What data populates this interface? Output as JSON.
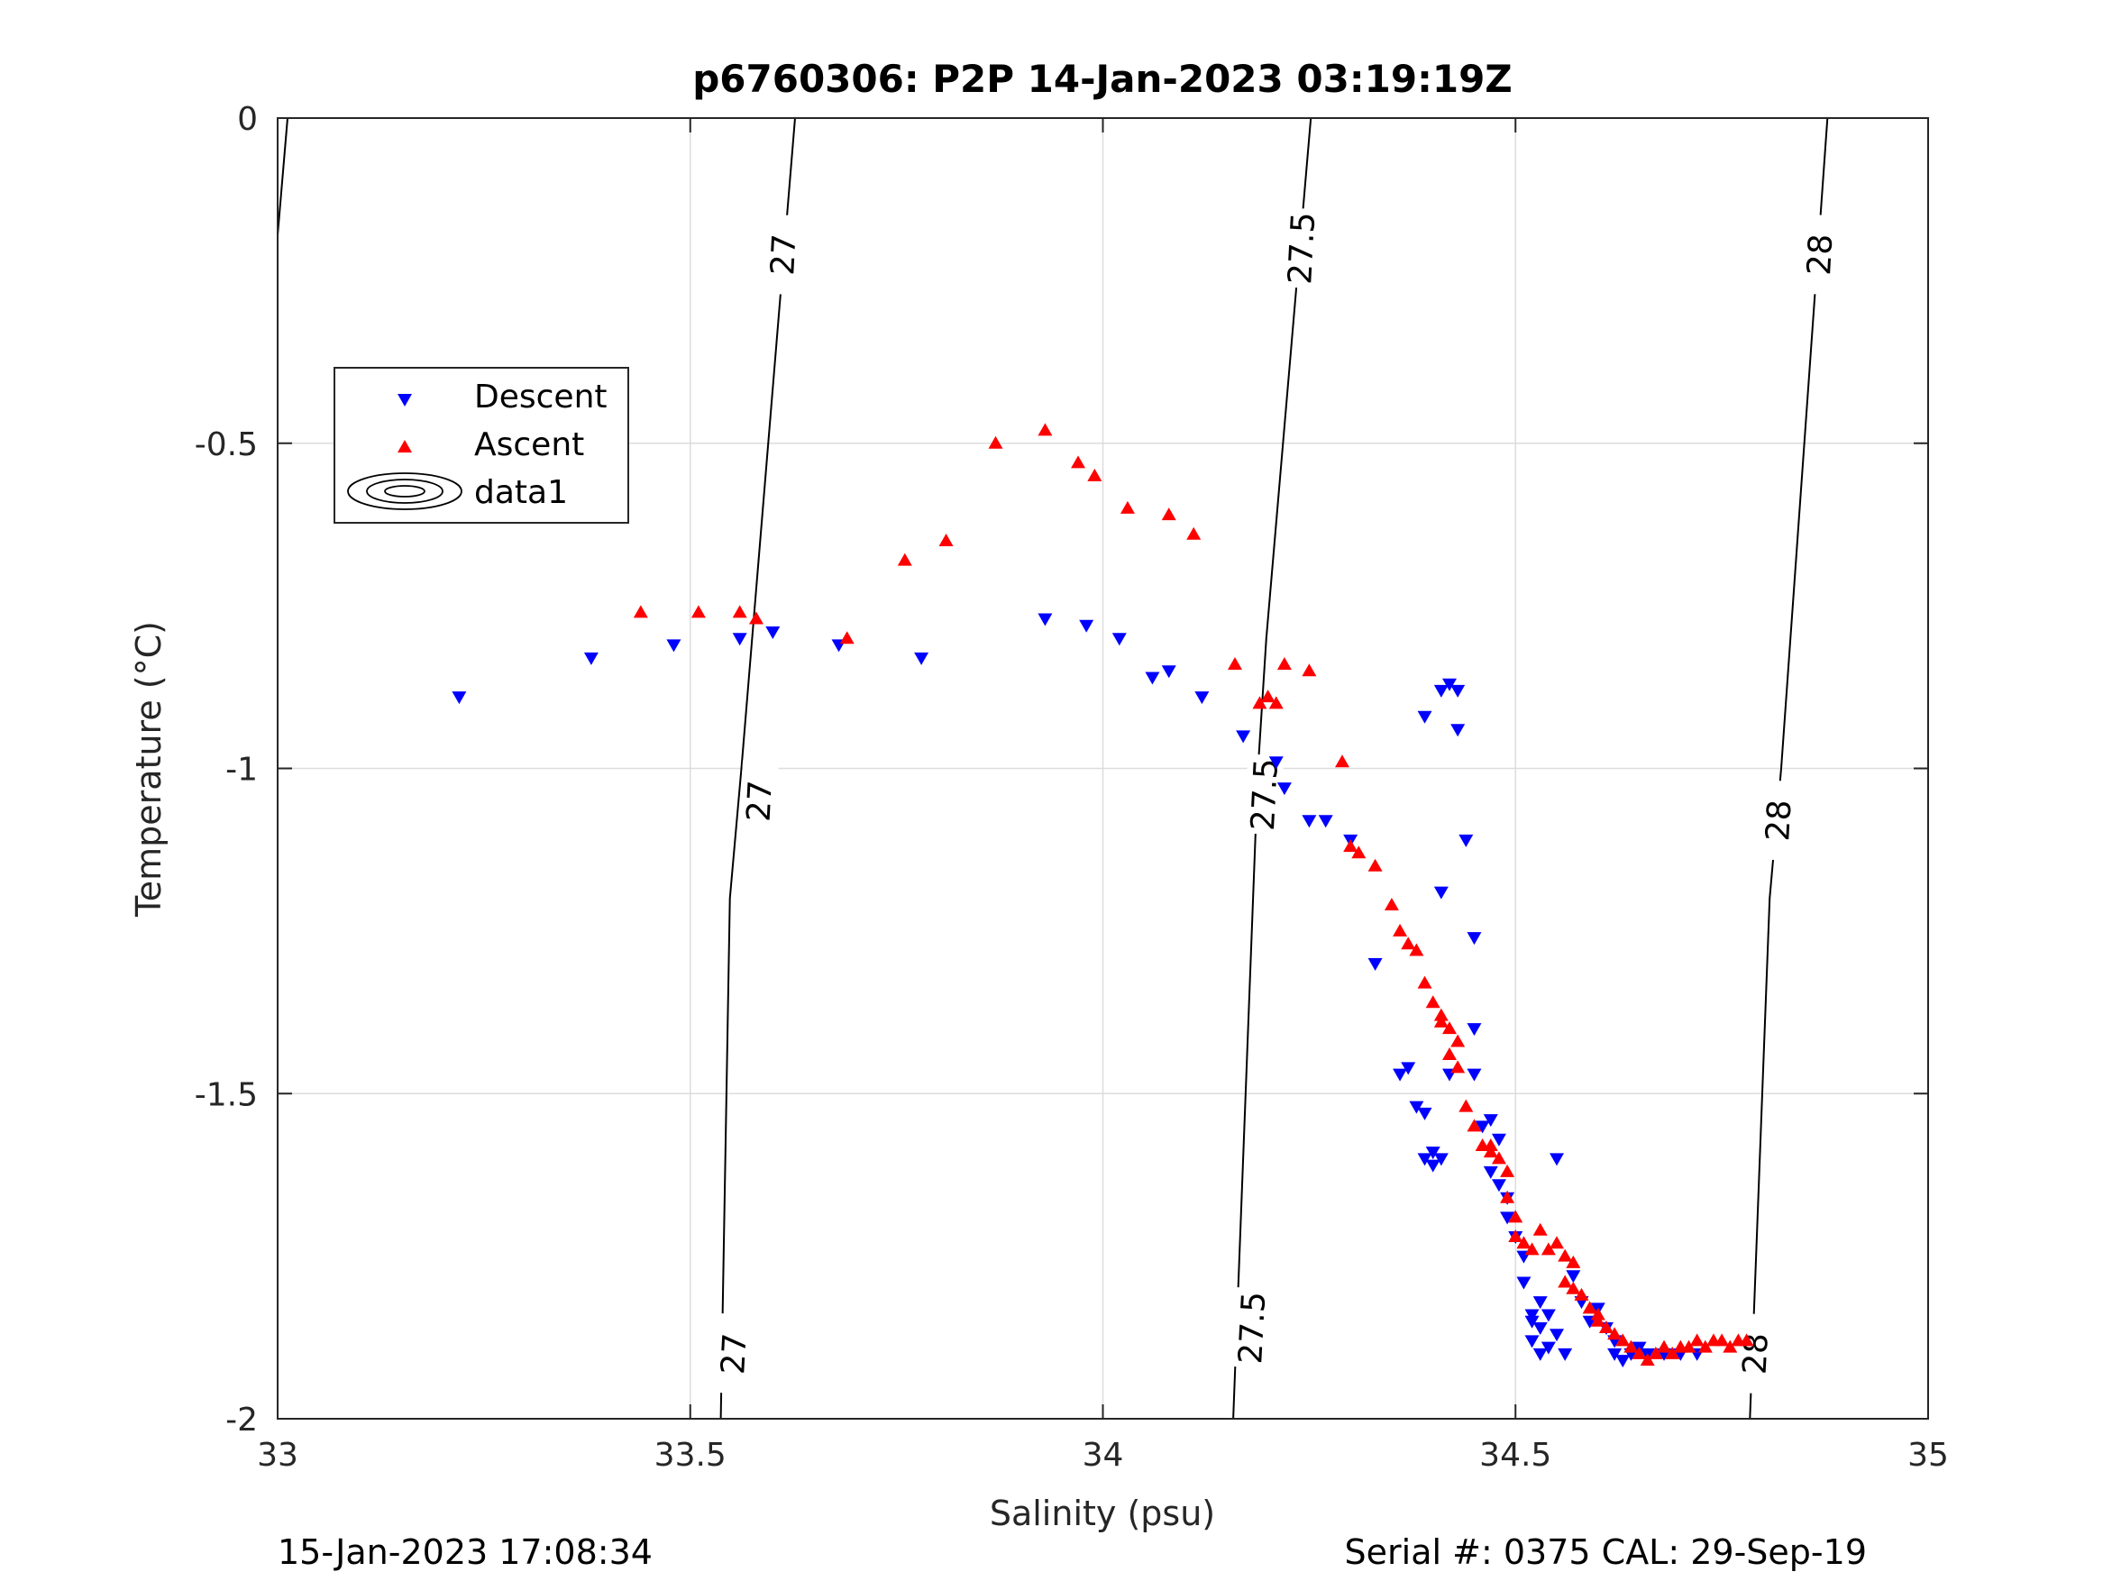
{
  "chart_data": {
    "type": "scatter",
    "title": "p6760306: P2P 14-Jan-2023 03:19:19Z",
    "xlabel": "Salinity (psu)",
    "ylabel": "Temperature (°C)",
    "xlim": [
      33,
      35
    ],
    "ylim": [
      -2,
      0
    ],
    "xticks": [
      "33",
      "33.5",
      "34",
      "34.5",
      "35"
    ],
    "yticks": [
      "0",
      "-0.5",
      "-1",
      "-1.5",
      "-2"
    ],
    "grid": true,
    "legend_position": "upper-left",
    "legend": [
      "Descent",
      "Ascent",
      "data1"
    ],
    "footer_left": "15-Jan-2023 17:08:34",
    "footer_right": "Serial #: 0375  CAL: 29-Sep-19",
    "colors": {
      "descent": "#0000ff",
      "ascent": "#ff0000",
      "contour": "#000000",
      "grid": "#dcdcdc"
    },
    "contours": [
      {
        "level": "27",
        "line": [
          [
            33.627,
            0
          ],
          [
            33.562,
            -1
          ],
          [
            33.548,
            -1.2
          ],
          [
            33.537,
            -2
          ]
        ],
        "labels": [
          [
            33.612,
            -0.21
          ],
          [
            33.583,
            -1.05
          ],
          [
            33.552,
            -1.9
          ]
        ]
      },
      {
        "level": "27.5",
        "line": [
          [
            34.252,
            0
          ],
          [
            34.198,
            -0.8
          ],
          [
            34.188,
            -1.0
          ],
          [
            34.158,
            -2
          ]
        ],
        "labels": [
          [
            34.24,
            -0.2
          ],
          [
            34.195,
            -1.04
          ],
          [
            34.18,
            -1.86
          ]
        ]
      },
      {
        "level": "28",
        "line": [
          [
            34.878,
            0
          ],
          [
            34.822,
            -1
          ],
          [
            34.808,
            -1.2
          ],
          [
            34.784,
            -2
          ]
        ],
        "labels": [
          [
            34.868,
            -0.21
          ],
          [
            34.818,
            -1.08
          ],
          [
            34.79,
            -1.9
          ]
        ]
      }
    ],
    "edge_contour": [
      [
        33.012,
        0
      ],
      [
        33.0,
        -0.18
      ]
    ],
    "series": [
      {
        "name": "Descent",
        "marker": "triangle-down",
        "points": [
          [
            33.22,
            -0.89
          ],
          [
            33.38,
            -0.83
          ],
          [
            33.48,
            -0.81
          ],
          [
            33.56,
            -0.8
          ],
          [
            33.6,
            -0.79
          ],
          [
            33.68,
            -0.81
          ],
          [
            33.78,
            -0.83
          ],
          [
            33.93,
            -0.77
          ],
          [
            33.98,
            -0.78
          ],
          [
            34.02,
            -0.8
          ],
          [
            34.06,
            -0.86
          ],
          [
            34.08,
            -0.85
          ],
          [
            34.12,
            -0.89
          ],
          [
            34.17,
            -0.95
          ],
          [
            34.21,
            -0.99
          ],
          [
            34.22,
            -1.03
          ],
          [
            34.25,
            -1.08
          ],
          [
            34.27,
            -1.08
          ],
          [
            34.3,
            -1.11
          ],
          [
            34.33,
            -1.3
          ],
          [
            34.36,
            -1.47
          ],
          [
            34.37,
            -1.46
          ],
          [
            34.38,
            -1.52
          ],
          [
            34.39,
            -1.53
          ],
          [
            34.39,
            -1.6
          ],
          [
            34.4,
            -1.59
          ],
          [
            34.4,
            -1.61
          ],
          [
            34.41,
            -1.6
          ],
          [
            34.39,
            -0.92
          ],
          [
            34.41,
            -0.88
          ],
          [
            34.42,
            -0.87
          ],
          [
            34.43,
            -0.88
          ],
          [
            34.43,
            -0.94
          ],
          [
            34.44,
            -1.11
          ],
          [
            34.41,
            -1.19
          ],
          [
            34.45,
            -1.26
          ],
          [
            34.45,
            -1.4
          ],
          [
            34.45,
            -1.47
          ],
          [
            34.42,
            -1.47
          ],
          [
            34.46,
            -1.55
          ],
          [
            34.47,
            -1.54
          ],
          [
            34.48,
            -1.57
          ],
          [
            34.47,
            -1.62
          ],
          [
            34.48,
            -1.64
          ],
          [
            34.49,
            -1.66
          ],
          [
            34.49,
            -1.69
          ],
          [
            34.5,
            -1.72
          ],
          [
            34.51,
            -1.75
          ],
          [
            34.51,
            -1.79
          ],
          [
            34.52,
            -1.85
          ],
          [
            34.52,
            -1.88
          ],
          [
            34.53,
            -1.82
          ],
          [
            34.53,
            -1.86
          ],
          [
            34.54,
            -1.84
          ],
          [
            34.54,
            -1.89
          ],
          [
            34.55,
            -1.87
          ],
          [
            34.56,
            -1.9
          ],
          [
            34.57,
            -1.78
          ],
          [
            34.58,
            -1.82
          ],
          [
            34.59,
            -1.85
          ],
          [
            34.6,
            -1.83
          ],
          [
            34.61,
            -1.86
          ],
          [
            34.62,
            -1.88
          ],
          [
            34.63,
            -1.91
          ],
          [
            34.64,
            -1.9
          ],
          [
            34.66,
            -1.9
          ],
          [
            34.68,
            -1.9
          ],
          [
            34.7,
            -1.9
          ],
          [
            34.72,
            -1.9
          ],
          [
            34.55,
            -1.6
          ],
          [
            34.52,
            -1.84
          ],
          [
            34.53,
            -1.9
          ],
          [
            34.62,
            -1.9
          ],
          [
            34.65,
            -1.89
          ]
        ]
      },
      {
        "name": "Ascent",
        "marker": "triangle-up",
        "points": [
          [
            33.44,
            -0.76
          ],
          [
            33.51,
            -0.76
          ],
          [
            33.56,
            -0.76
          ],
          [
            33.58,
            -0.77
          ],
          [
            33.69,
            -0.8
          ],
          [
            33.76,
            -0.68
          ],
          [
            33.81,
            -0.65
          ],
          [
            33.87,
            -0.5
          ],
          [
            33.93,
            -0.48
          ],
          [
            33.97,
            -0.53
          ],
          [
            33.99,
            -0.55
          ],
          [
            34.03,
            -0.6
          ],
          [
            34.08,
            -0.61
          ],
          [
            34.11,
            -0.64
          ],
          [
            34.16,
            -0.84
          ],
          [
            34.19,
            -0.9
          ],
          [
            34.2,
            -0.89
          ],
          [
            34.22,
            -0.84
          ],
          [
            34.25,
            -0.85
          ],
          [
            34.21,
            -0.9
          ],
          [
            34.29,
            -0.99
          ],
          [
            34.3,
            -1.12
          ],
          [
            34.31,
            -1.13
          ],
          [
            34.33,
            -1.15
          ],
          [
            34.35,
            -1.21
          ],
          [
            34.36,
            -1.25
          ],
          [
            34.37,
            -1.27
          ],
          [
            34.38,
            -1.28
          ],
          [
            34.39,
            -1.33
          ],
          [
            34.4,
            -1.36
          ],
          [
            34.41,
            -1.38
          ],
          [
            34.42,
            -1.4
          ],
          [
            34.42,
            -1.44
          ],
          [
            34.43,
            -1.46
          ],
          [
            34.44,
            -1.52
          ],
          [
            34.45,
            -1.55
          ],
          [
            34.46,
            -1.58
          ],
          [
            34.47,
            -1.58
          ],
          [
            34.48,
            -1.6
          ],
          [
            34.49,
            -1.62
          ],
          [
            34.49,
            -1.66
          ],
          [
            34.5,
            -1.69
          ],
          [
            34.5,
            -1.72
          ],
          [
            34.51,
            -1.73
          ],
          [
            34.52,
            -1.74
          ],
          [
            34.53,
            -1.71
          ],
          [
            34.54,
            -1.74
          ],
          [
            34.55,
            -1.73
          ],
          [
            34.56,
            -1.75
          ],
          [
            34.56,
            -1.79
          ],
          [
            34.57,
            -1.8
          ],
          [
            34.58,
            -1.81
          ],
          [
            34.59,
            -1.83
          ],
          [
            34.6,
            -1.85
          ],
          [
            34.61,
            -1.86
          ],
          [
            34.62,
            -1.87
          ],
          [
            34.63,
            -1.88
          ],
          [
            34.64,
            -1.89
          ],
          [
            34.65,
            -1.9
          ],
          [
            34.66,
            -1.91
          ],
          [
            34.67,
            -1.9
          ],
          [
            34.68,
            -1.89
          ],
          [
            34.69,
            -1.9
          ],
          [
            34.7,
            -1.89
          ],
          [
            34.71,
            -1.89
          ],
          [
            34.72,
            -1.88
          ],
          [
            34.73,
            -1.89
          ],
          [
            34.74,
            -1.88
          ],
          [
            34.75,
            -1.88
          ],
          [
            34.76,
            -1.89
          ],
          [
            34.77,
            -1.88
          ],
          [
            34.78,
            -1.88
          ],
          [
            34.41,
            -1.39
          ],
          [
            34.43,
            -1.42
          ],
          [
            34.47,
            -1.59
          ],
          [
            34.57,
            -1.76
          ],
          [
            34.6,
            -1.84
          ]
        ]
      }
    ]
  }
}
